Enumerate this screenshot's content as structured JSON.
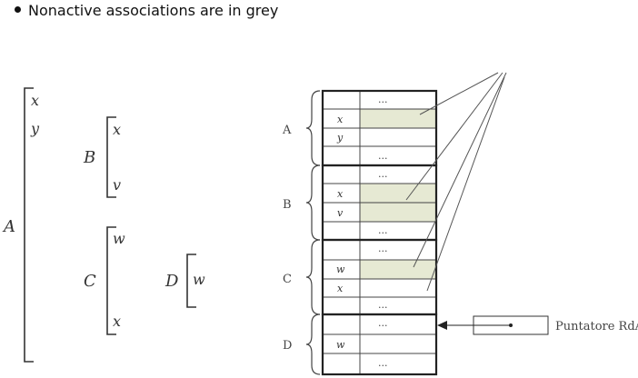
{
  "bullet": {
    "text": "Nonactive associations are in grey"
  },
  "left": {
    "A": {
      "label": "A",
      "vars": [
        "x",
        "y"
      ]
    },
    "B": {
      "label": "B",
      "vars": [
        "x",
        "v"
      ]
    },
    "C": {
      "label": "C",
      "vars": [
        "w",
        "x"
      ]
    },
    "D": {
      "label": "D",
      "vars": [
        "w"
      ]
    }
  },
  "right": {
    "labels": {
      "A": "A",
      "B": "B",
      "C": "C",
      "D": "D"
    },
    "dots": "...",
    "rows": {
      "a_x": "x",
      "a_y": "y",
      "b_x": "x",
      "b_v": "v",
      "c_w": "w",
      "c_x": "x",
      "d_w": "w"
    },
    "pointer_label": "Puntatore RdA"
  },
  "colors": {
    "inactive_cell": "#e6e9d3",
    "line": "#333333"
  }
}
